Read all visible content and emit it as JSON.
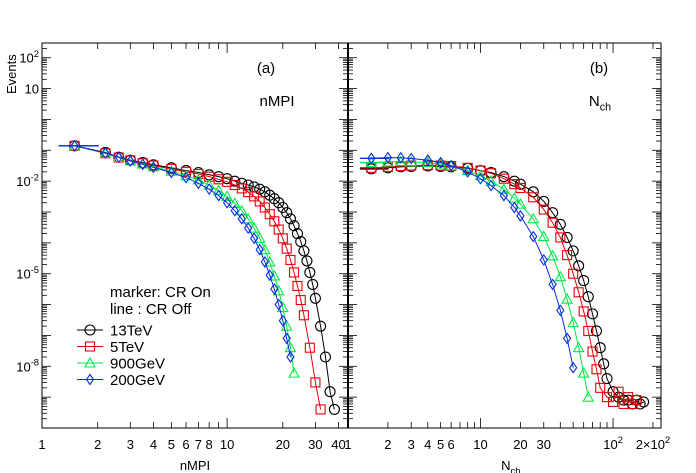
{
  "figure": {
    "ylabel": "Events"
  },
  "chart_data": [
    {
      "type": "scatter",
      "panel_label": "(a)",
      "title": "nMPI",
      "xlabel": "nMPI",
      "x_scale": "log",
      "y_scale": "log",
      "xlim": [
        1,
        45
      ],
      "ylim": [
        1e-10,
        300
      ],
      "x_ticks": [
        "1",
        "2",
        "3",
        "4",
        "5",
        "6",
        "7",
        "8",
        "10",
        "20",
        "30",
        "40"
      ],
      "y_ticks": [
        "10^-8",
        "10^-5",
        "10^-2",
        "10",
        "10^2"
      ],
      "legend_header": [
        "marker: CR On",
        "line : CR Off"
      ],
      "legend": [
        {
          "label": "13TeV",
          "marker": "circle",
          "color": "#000000"
        },
        {
          "label": "5TeV",
          "marker": "square",
          "color": "#e8000b"
        },
        {
          "label": "900GeV",
          "marker": "triangle",
          "color": "#00e845"
        },
        {
          "label": "200GeV",
          "marker": "diamond",
          "color": "#0a2ce6"
        }
      ],
      "series": [
        {
          "name": "13TeV",
          "color": "#000000",
          "marker": "circle",
          "x": [
            1.5,
            2.2,
            2.6,
            3.0,
            3.5,
            4.0,
            5.0,
            6.0,
            7.0,
            8.0,
            9.0,
            10.0,
            11,
            12,
            13,
            14,
            15,
            16,
            17,
            18,
            19,
            20,
            21,
            22,
            23,
            24,
            25,
            26,
            27,
            28,
            29,
            30,
            32,
            34,
            36,
            38
          ],
          "y": [
            0.14,
            0.085,
            0.06,
            0.048,
            0.04,
            0.034,
            0.027,
            0.022,
            0.019,
            0.016,
            0.014,
            0.012,
            0.01,
            0.0085,
            0.0075,
            0.0065,
            0.0055,
            0.0045,
            0.0035,
            0.0027,
            0.002,
            0.0014,
            0.00095,
            0.0006,
            0.00036,
            0.0002,
            0.00011,
            5.5e-05,
            2.6e-05,
            1.1e-05,
            4.5e-06,
            1.6e-06,
            2e-07,
            2e-08,
            1.5e-09,
            4e-10
          ]
        },
        {
          "name": "5TeV",
          "color": "#e8000b",
          "marker": "square",
          "x": [
            1.5,
            2.2,
            2.6,
            3.0,
            3.5,
            4.0,
            5.0,
            6.0,
            7.0,
            8.0,
            9.0,
            10.0,
            11,
            12,
            13,
            14,
            15,
            16,
            17,
            18,
            19,
            20,
            21,
            22,
            23,
            24,
            25,
            26,
            28,
            30,
            32
          ],
          "y": [
            0.14,
            0.08,
            0.058,
            0.047,
            0.038,
            0.032,
            0.025,
            0.02,
            0.017,
            0.014,
            0.0115,
            0.0095,
            0.0075,
            0.0058,
            0.0044,
            0.0032,
            0.0022,
            0.0014,
            0.00085,
            0.0005,
            0.00027,
            0.00014,
            6.5e-05,
            2.8e-05,
            1.1e-05,
            4e-06,
            1.4e-06,
            4.5e-07,
            4e-08,
            3e-09,
            4e-10
          ]
        },
        {
          "name": "900GeV",
          "color": "#00e845",
          "marker": "triangle",
          "x": [
            1.5,
            2.2,
            2.6,
            3.0,
            3.5,
            4.0,
            5.0,
            6.0,
            7.0,
            8.0,
            9.0,
            10.0,
            11,
            12,
            13,
            14,
            15,
            16,
            17,
            18,
            19,
            20,
            21,
            22,
            23
          ],
          "y": [
            0.14,
            0.08,
            0.058,
            0.045,
            0.036,
            0.029,
            0.021,
            0.015,
            0.011,
            0.0075,
            0.005,
            0.0032,
            0.0019,
            0.0011,
            0.0006,
            0.0003,
            0.00014,
            6e-05,
            2.4e-05,
            8.5e-06,
            2.8e-06,
            8e-07,
            2e-07,
            4e-08,
            6e-09
          ]
        },
        {
          "name": "200GeV",
          "color": "#0a2ce6",
          "marker": "diamond",
          "x": [
            1.5,
            2.2,
            2.6,
            3.0,
            3.5,
            4.0,
            5.0,
            6.0,
            7.0,
            8.0,
            9.0,
            10.0,
            11,
            12,
            13,
            14,
            15,
            16,
            17,
            18,
            19,
            20,
            21,
            22
          ],
          "y": [
            0.14,
            0.082,
            0.06,
            0.045,
            0.035,
            0.028,
            0.019,
            0.013,
            0.0085,
            0.0055,
            0.0034,
            0.002,
            0.0011,
            0.0006,
            0.0003,
            0.00014,
            6e-05,
            2.4e-05,
            9e-06,
            3.2e-06,
            1e-06,
            3e-07,
            8e-08,
            2e-08
          ]
        }
      ]
    },
    {
      "type": "scatter",
      "panel_label": "(b)",
      "title": "N_ch",
      "xlabel": "N_ch",
      "x_scale": "log",
      "y_scale": "log",
      "xlim": [
        1,
        230
      ],
      "ylim": [
        1e-10,
        300
      ],
      "x_ticks": [
        "1",
        "2",
        "3",
        "4",
        "5",
        "6",
        "10",
        "20",
        "30",
        "10^2",
        "2×10^2"
      ],
      "series": [
        {
          "name": "13TeV",
          "color": "#000000",
          "marker": "circle",
          "x": [
            1.5,
            2,
            2.5,
            3,
            4,
            5,
            6,
            8,
            10,
            12,
            15,
            18,
            20,
            25,
            30,
            35,
            40,
            45,
            50,
            55,
            60,
            65,
            70,
            75,
            80,
            85,
            90,
            100,
            110,
            120,
            130,
            140,
            150,
            160,
            170
          ],
          "y": [
            0.025,
            0.027,
            0.029,
            0.03,
            0.031,
            0.03,
            0.029,
            0.026,
            0.022,
            0.019,
            0.014,
            0.01,
            0.008,
            0.0045,
            0.0022,
            0.00095,
            0.0004,
            0.00015,
            5.5e-05,
            1.8e-05,
            6e-06,
            1.8e-06,
            5e-07,
            1.4e-07,
            4e-08,
            1.2e-08,
            4e-09,
            1.5e-09,
            1e-09,
            8e-10,
            8e-10,
            6e-10,
            8e-10,
            6e-10,
            7e-10
          ]
        },
        {
          "name": "5TeV",
          "color": "#e8000b",
          "marker": "square",
          "x": [
            1.5,
            2,
            2.5,
            3,
            4,
            5,
            6,
            8,
            10,
            12,
            15,
            18,
            20,
            25,
            30,
            35,
            40,
            45,
            50,
            55,
            60,
            65,
            70,
            75,
            80,
            90,
            100,
            110,
            120,
            130,
            140,
            150
          ],
          "y": [
            0.027,
            0.029,
            0.031,
            0.032,
            0.033,
            0.032,
            0.031,
            0.027,
            0.022,
            0.018,
            0.012,
            0.008,
            0.006,
            0.003,
            0.0012,
            0.00045,
            0.00015,
            4e-05,
            1e-05,
            2.5e-06,
            6e-07,
            1.4e-07,
            3e-08,
            8e-09,
            2e-09,
            1e-09,
            7e-10,
            1.5e-09,
            6e-10,
            1e-09,
            6e-10,
            8e-10
          ]
        },
        {
          "name": "900GeV",
          "color": "#00e845",
          "marker": "triangle",
          "x": [
            1.5,
            2,
            2.5,
            3,
            4,
            5,
            6,
            8,
            10,
            12,
            15,
            18,
            20,
            25,
            30,
            35,
            40,
            45,
            50,
            55,
            60,
            65
          ],
          "y": [
            0.04,
            0.042,
            0.043,
            0.042,
            0.04,
            0.036,
            0.031,
            0.022,
            0.015,
            0.01,
            0.0055,
            0.0028,
            0.0018,
            0.0006,
            0.00016,
            3.8e-05,
            8e-06,
            1.5e-06,
            2.6e-07,
            4e-08,
            6e-09,
            1e-09
          ]
        },
        {
          "name": "200GeV",
          "color": "#0a2ce6",
          "marker": "diamond",
          "x": [
            1.5,
            2,
            2.5,
            3,
            4,
            5,
            6,
            8,
            10,
            12,
            15,
            18,
            20,
            25,
            30,
            35,
            40,
            45,
            50
          ],
          "y": [
            0.055,
            0.058,
            0.057,
            0.054,
            0.048,
            0.04,
            0.032,
            0.02,
            0.012,
            0.0072,
            0.0034,
            0.0014,
            0.00075,
            0.00016,
            2.8e-05,
            4.5e-06,
            6.5e-07,
            8e-08,
            9e-09
          ]
        }
      ]
    }
  ]
}
